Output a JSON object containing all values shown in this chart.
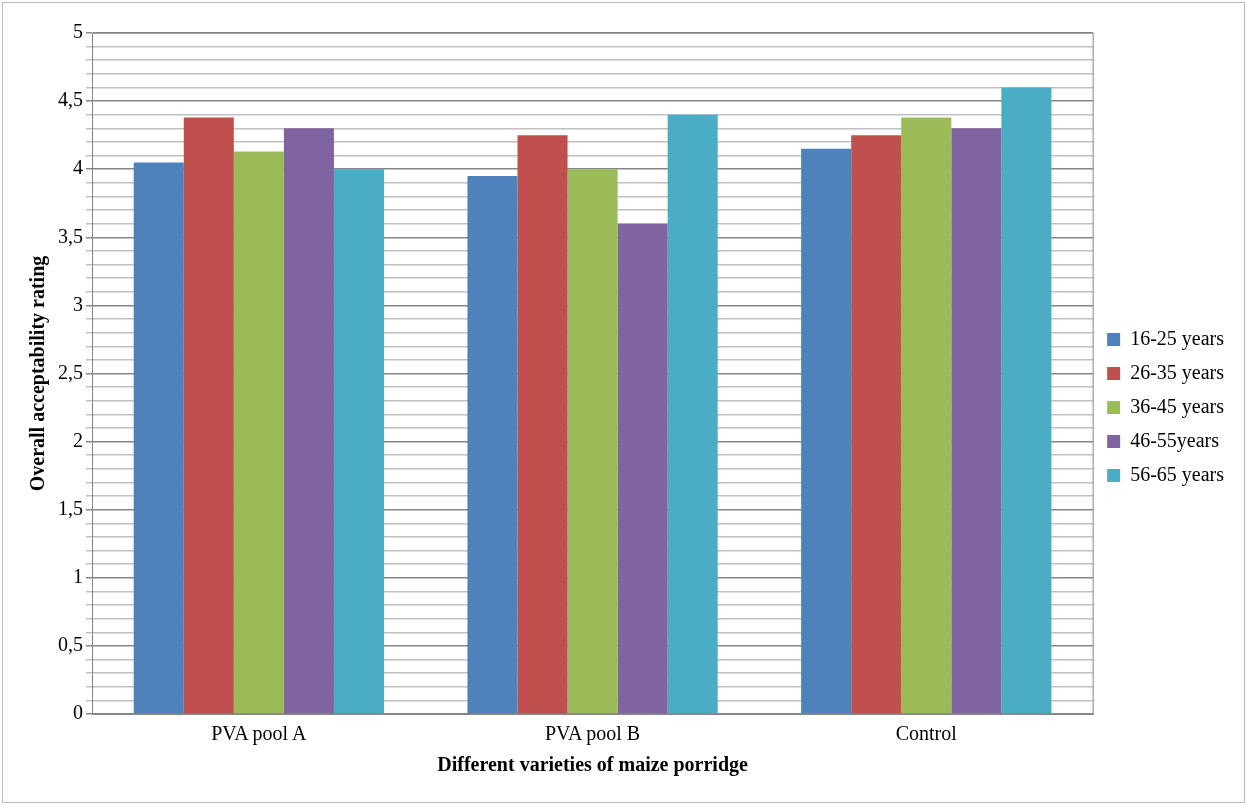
{
  "chart_data": {
    "type": "bar",
    "xlabel": "Different varieties of maize porridge",
    "ylabel": "Overall acceptability rating",
    "categories": [
      "PVA pool A",
      "PVA pool B",
      "Control"
    ],
    "series": [
      {
        "name": "16-25 years",
        "color": "#4f81bd",
        "values": [
          4.05,
          3.95,
          4.15
        ]
      },
      {
        "name": "26-35 years",
        "color": "#c0504d",
        "values": [
          4.38,
          4.25,
          4.25
        ]
      },
      {
        "name": "36-45 years",
        "color": "#9bbb59",
        "values": [
          4.13,
          4.0,
          4.38
        ]
      },
      {
        "name": "46-55years",
        "color": "#8064a2",
        "values": [
          4.3,
          3.6,
          4.3
        ]
      },
      {
        "name": "56-65 years",
        "color": "#4bacc6",
        "values": [
          4.0,
          4.4,
          4.6
        ]
      }
    ],
    "ylim": [
      0,
      5
    ],
    "yticks": [
      0,
      {
        "value": 0.1,
        "label": null
      },
      {
        "value": 0.2,
        "label": null
      },
      {
        "value": 0.3,
        "label": null
      },
      {
        "value": 0.4,
        "label": null
      },
      {
        "value": 0.5,
        "label": "0,5"
      },
      {
        "value": 0.6,
        "label": null
      },
      {
        "value": 0.7,
        "label": null
      },
      {
        "value": 0.8,
        "label": null
      },
      {
        "value": 0.9,
        "label": null
      },
      1,
      {
        "value": 1.1,
        "label": null
      },
      {
        "value": 1.2,
        "label": null
      },
      {
        "value": 1.3,
        "label": null
      },
      {
        "value": 1.4,
        "label": null
      },
      {
        "value": 1.5,
        "label": "1,5"
      },
      {
        "value": 1.6,
        "label": null
      },
      {
        "value": 1.7,
        "label": null
      },
      {
        "value": 1.8,
        "label": null
      },
      {
        "value": 1.9,
        "label": null
      },
      2,
      {
        "value": 2.1,
        "label": null
      },
      {
        "value": 2.2,
        "label": null
      },
      {
        "value": 2.3,
        "label": null
      },
      {
        "value": 2.4,
        "label": null
      },
      {
        "value": 2.5,
        "label": "2,5"
      },
      {
        "value": 2.6,
        "label": null
      },
      {
        "value": 2.7,
        "label": null
      },
      {
        "value": 2.8,
        "label": null
      },
      {
        "value": 2.9,
        "label": null
      },
      3,
      {
        "value": 3.1,
        "label": null
      },
      {
        "value": 3.2,
        "label": null
      },
      {
        "value": 3.3,
        "label": null
      },
      {
        "value": 3.4,
        "label": null
      },
      {
        "value": 3.5,
        "label": "3,5"
      },
      {
        "value": 3.6,
        "label": null
      },
      {
        "value": 3.7,
        "label": null
      },
      {
        "value": 3.8,
        "label": null
      },
      {
        "value": 3.9,
        "label": null
      },
      4,
      {
        "value": 4.1,
        "label": null
      },
      {
        "value": 4.2,
        "label": null
      },
      {
        "value": 4.3,
        "label": null
      },
      {
        "value": 4.4,
        "label": null
      },
      {
        "value": 4.5,
        "label": "4,5"
      },
      {
        "value": 4.6,
        "label": null
      },
      {
        "value": 4.7,
        "label": null
      },
      {
        "value": 4.8,
        "label": null
      },
      {
        "value": 4.9,
        "label": null
      },
      5
    ],
    "grid": "y",
    "legend": "right"
  }
}
